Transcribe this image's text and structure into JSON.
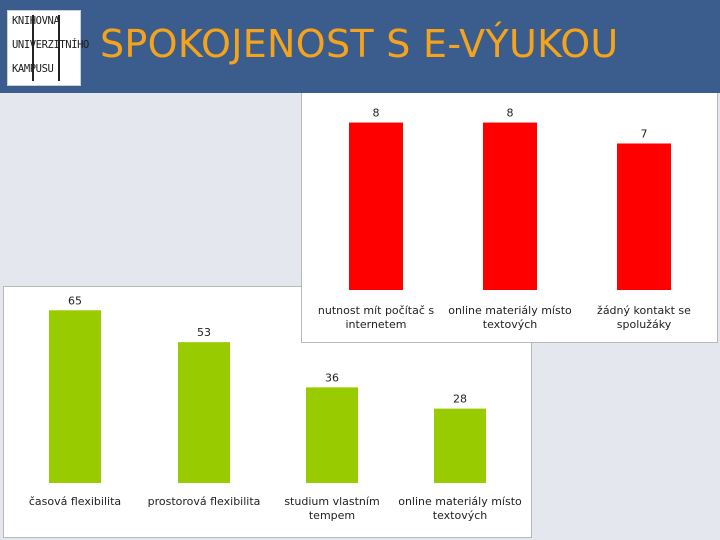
{
  "slide": {
    "title": "SPOKOJENOST S E-VÝUKOU"
  },
  "logo": {
    "lines": [
      "KNIHOVNA",
      "UNIVERZITNÍHO",
      "KAMPUSU"
    ]
  },
  "chart_data": [
    {
      "type": "bar",
      "categories": [
        [
          "nutnost mít počítač s",
          "internetem"
        ],
        [
          "online materiály místo",
          "textových"
        ],
        [
          "žádný kontakt se",
          "spolužáky"
        ]
      ],
      "values": [
        8,
        8,
        7
      ],
      "ylim": [
        0,
        8.6
      ],
      "grid": false,
      "colors": {
        "bar": "#ff0000"
      }
    },
    {
      "type": "bar",
      "categories": [
        [
          "časová flexibilita"
        ],
        [
          "prostorová flexibilita"
        ],
        [
          "studium vlastním",
          "tempem"
        ],
        [
          "online materiály místo",
          "textových"
        ]
      ],
      "values": [
        65,
        53,
        36,
        28
      ],
      "ylim": [
        0,
        70
      ],
      "grid": false,
      "colors": {
        "bar": "#99cc00"
      }
    }
  ]
}
